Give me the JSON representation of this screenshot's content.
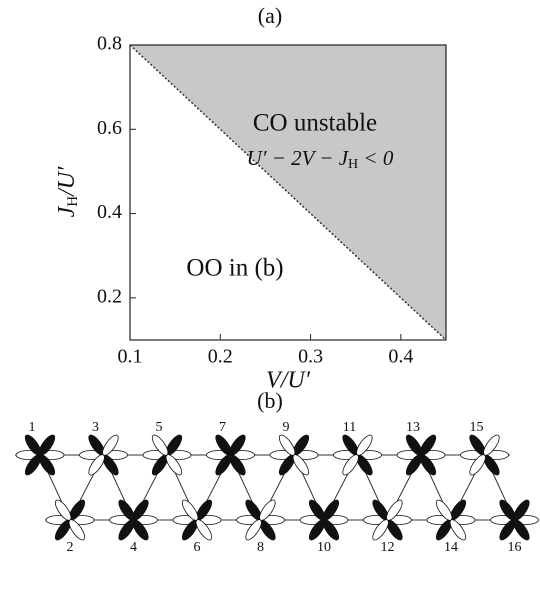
{
  "chart_data": {
    "type": "area",
    "title": "(a)",
    "x": [
      0.1,
      0.45
    ],
    "values": [
      0.8,
      0.1
    ],
    "color": "#c8c8c8",
    "xlim": [
      0.1,
      0.45
    ],
    "ylim": [
      0.1,
      0.8
    ],
    "xticks": [
      0.1,
      0.2,
      0.3,
      0.4
    ],
    "yticks": [
      0.2,
      0.4,
      0.6,
      0.8
    ],
    "xlabel": "V/U′",
    "ylabel": [
      "J",
      "H",
      "/U′"
    ],
    "annotations": {
      "region": "CO unstable",
      "condition": [
        "U′ − 2V − J",
        "H",
        " < 0"
      ],
      "other": "OO in (b)"
    }
  },
  "diagram": {
    "title": "(b)",
    "sites": [
      "1",
      "2",
      "3",
      "4",
      "5",
      "6",
      "7",
      "8",
      "9",
      "10",
      "11",
      "12",
      "13",
      "14",
      "15",
      "16"
    ]
  }
}
